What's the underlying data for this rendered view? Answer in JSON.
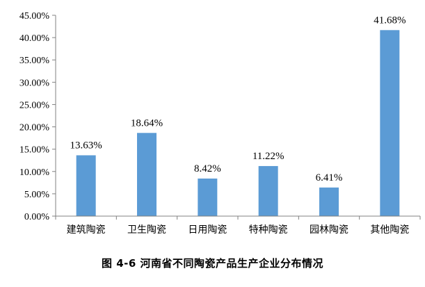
{
  "caption": "图 4-6   河南省不同陶瓷产品生产企业分布情况",
  "colors": {
    "bar": "#5b9bd5",
    "axis": "#808080"
  },
  "chart_data": {
    "type": "bar",
    "categories": [
      "建筑陶瓷",
      "卫生陶瓷",
      "日用陶瓷",
      "特种陶瓷",
      "园林陶瓷",
      "其他陶瓷"
    ],
    "values": [
      13.63,
      18.64,
      8.42,
      11.22,
      6.41,
      41.68
    ],
    "data_labels": [
      "13.63%",
      "18.64%",
      "8.42%",
      "11.22%",
      "6.41%",
      "41.68%"
    ],
    "y_ticks": [
      "0.00%",
      "5.00%",
      "10.00%",
      "15.00%",
      "20.00%",
      "25.00%",
      "30.00%",
      "35.00%",
      "40.00%",
      "45.00%"
    ],
    "ylim": [
      0,
      45
    ],
    "y_step": 5,
    "grid": false,
    "legend": "none"
  }
}
